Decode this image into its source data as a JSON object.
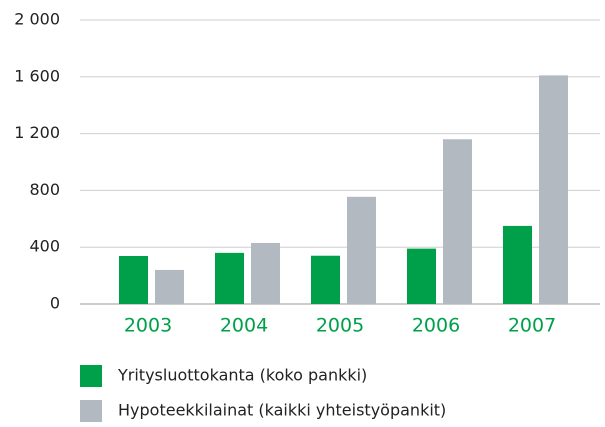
{
  "chart_data": {
    "type": "bar",
    "categories": [
      "2003",
      "2004",
      "2005",
      "2006",
      "2007"
    ],
    "series": [
      {
        "name": "Yritysluottokanta (koko pankki)",
        "color": "#00a04a",
        "values": [
          338,
          360,
          340,
          390,
          550
        ]
      },
      {
        "name": "Hypoteekkilainat (kaikki yhteistyöpankit)",
        "color": "#b3b9c0",
        "values": [
          240,
          430,
          755,
          1160,
          1610
        ]
      }
    ],
    "ylim": [
      0,
      2000
    ],
    "yticks": [
      0,
      400,
      800,
      {
        "value": 1200,
        "label": "1 200"
      },
      {
        "value": 1600,
        "label": "1 600"
      },
      {
        "value": 2000,
        "label": "2 000"
      }
    ],
    "category_color": "#00a04a",
    "grid": true
  }
}
